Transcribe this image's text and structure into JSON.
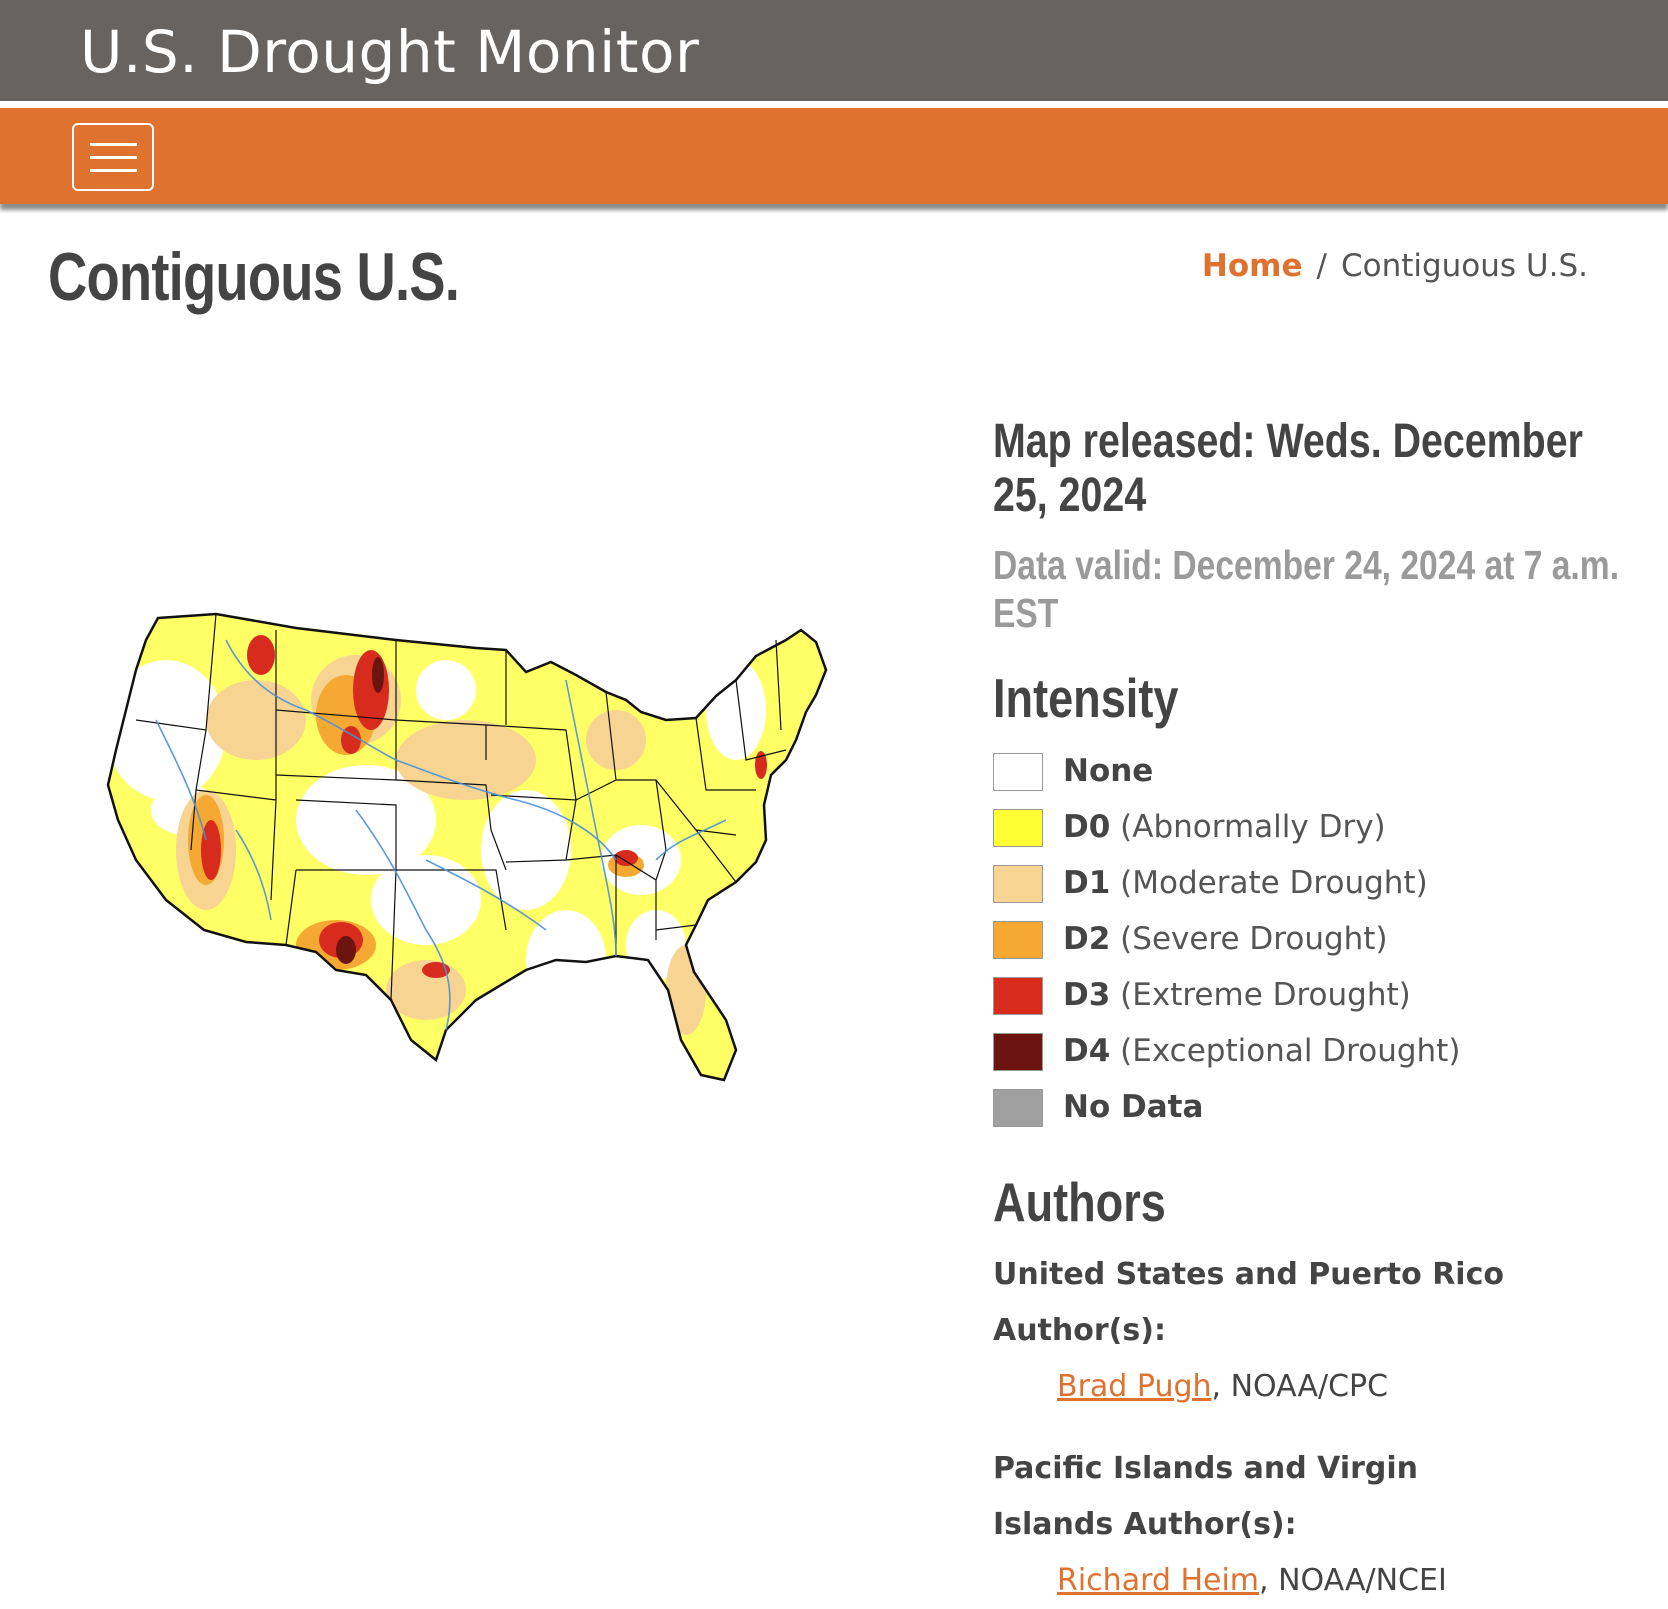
{
  "header": {
    "site_title": "U.S. Drought Monitor"
  },
  "page": {
    "title": "Contiguous U.S."
  },
  "breadcrumb": {
    "home": "Home",
    "separator": "/",
    "current": "Contiguous U.S."
  },
  "map_info": {
    "released": "Map released: Weds. December 25, 2024",
    "valid": "Data valid: December 24, 2024 at 7 a.m. EST"
  },
  "intensity": {
    "heading": "Intensity",
    "items": [
      {
        "code": "",
        "label": "None",
        "color": "#ffffff"
      },
      {
        "code": "D0",
        "label": "(Abnormally Dry)",
        "color": "#ffff33"
      },
      {
        "code": "D1",
        "label": "(Moderate Drought)",
        "color": "#f7d492"
      },
      {
        "code": "D2",
        "label": "(Severe Drought)",
        "color": "#f5a932"
      },
      {
        "code": "D3",
        "label": "(Extreme Drought)",
        "color": "#d72b1e"
      },
      {
        "code": "D4",
        "label": "(Exceptional Drought)",
        "color": "#6b1410"
      },
      {
        "code": "",
        "label": "No Data",
        "color": "#a0a0a0"
      }
    ]
  },
  "authors": {
    "heading": "Authors",
    "groups": [
      {
        "title": "United States and Puerto Rico Author(s):",
        "name": "Brad Pugh",
        "org": ", NOAA/CPC"
      },
      {
        "title": "Pacific Islands and Virgin Islands Author(s):",
        "name": "Richard Heim",
        "org": ", NOAA/NCEI"
      }
    ]
  },
  "colors": {
    "header_bg": "#666361",
    "nav_bg": "#e07230",
    "link": "#e07230"
  }
}
